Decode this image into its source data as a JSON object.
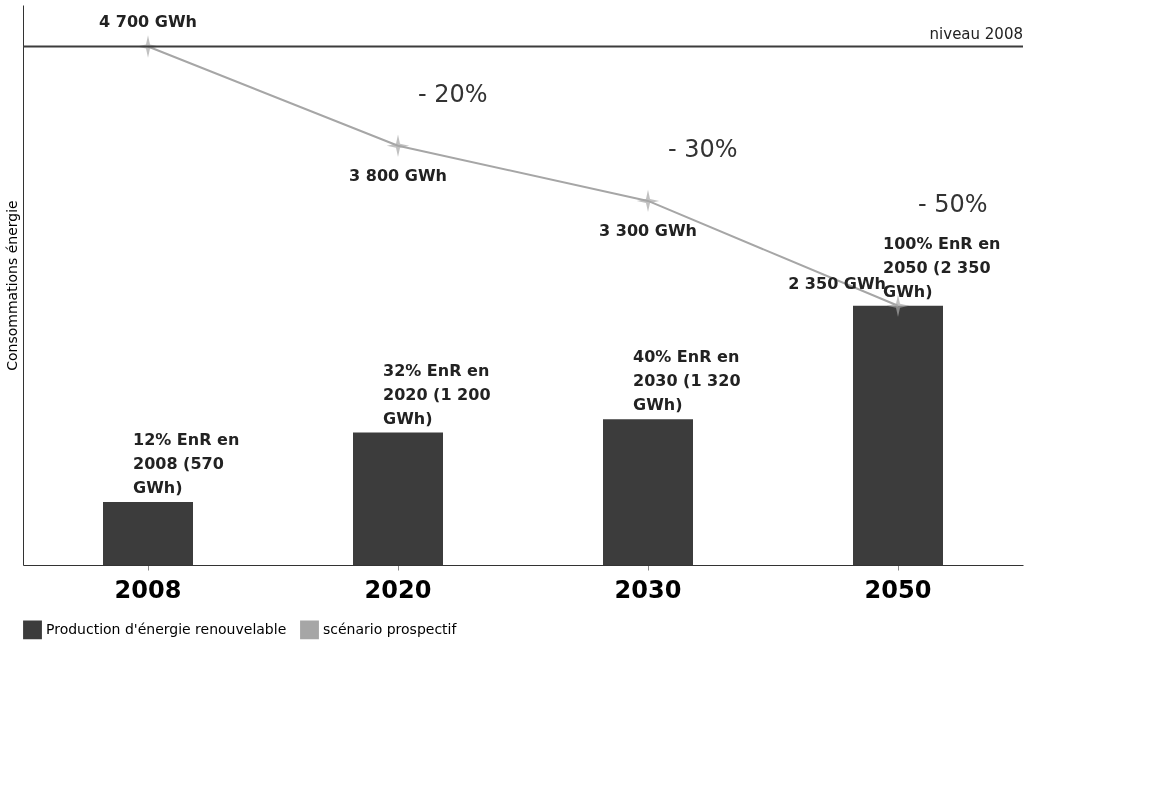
{
  "chart_data": {
    "type": "bar",
    "ylabel": "Consommations énergie",
    "categories": [
      "2008",
      "2020",
      "2030",
      "2050"
    ],
    "series": [
      {
        "name": "Production d'énergie renouvelable",
        "color": "#3c3c3c",
        "values": [
          570,
          1200,
          1320,
          2350
        ],
        "value_labels": [
          "12% EnR en 2008 (570 GWh)",
          "32% EnR en 2020 (1 200 GWh)",
          "40% EnR en 2030 (1 320 GWh)",
          "100% EnR en 2050 (2 350 GWh)"
        ]
      },
      {
        "name": "scénario prospectif",
        "type": "line",
        "color": "#a6a6a6",
        "marker": "star",
        "values": [
          4700,
          3800,
          3300,
          2350
        ],
        "value_labels": [
          "4 700 GWh",
          "3 800 GWh",
          "3 300 GWh",
          "2 350 GWh"
        ]
      }
    ],
    "ref_lines": [
      {
        "axis": "y",
        "value": 4700,
        "label": "niveau 2008",
        "color": "#3c3c3c"
      }
    ],
    "annotations": [
      "- 20%",
      "- 30%",
      "- 50%"
    ],
    "legend": "bottom",
    "grid": false
  }
}
